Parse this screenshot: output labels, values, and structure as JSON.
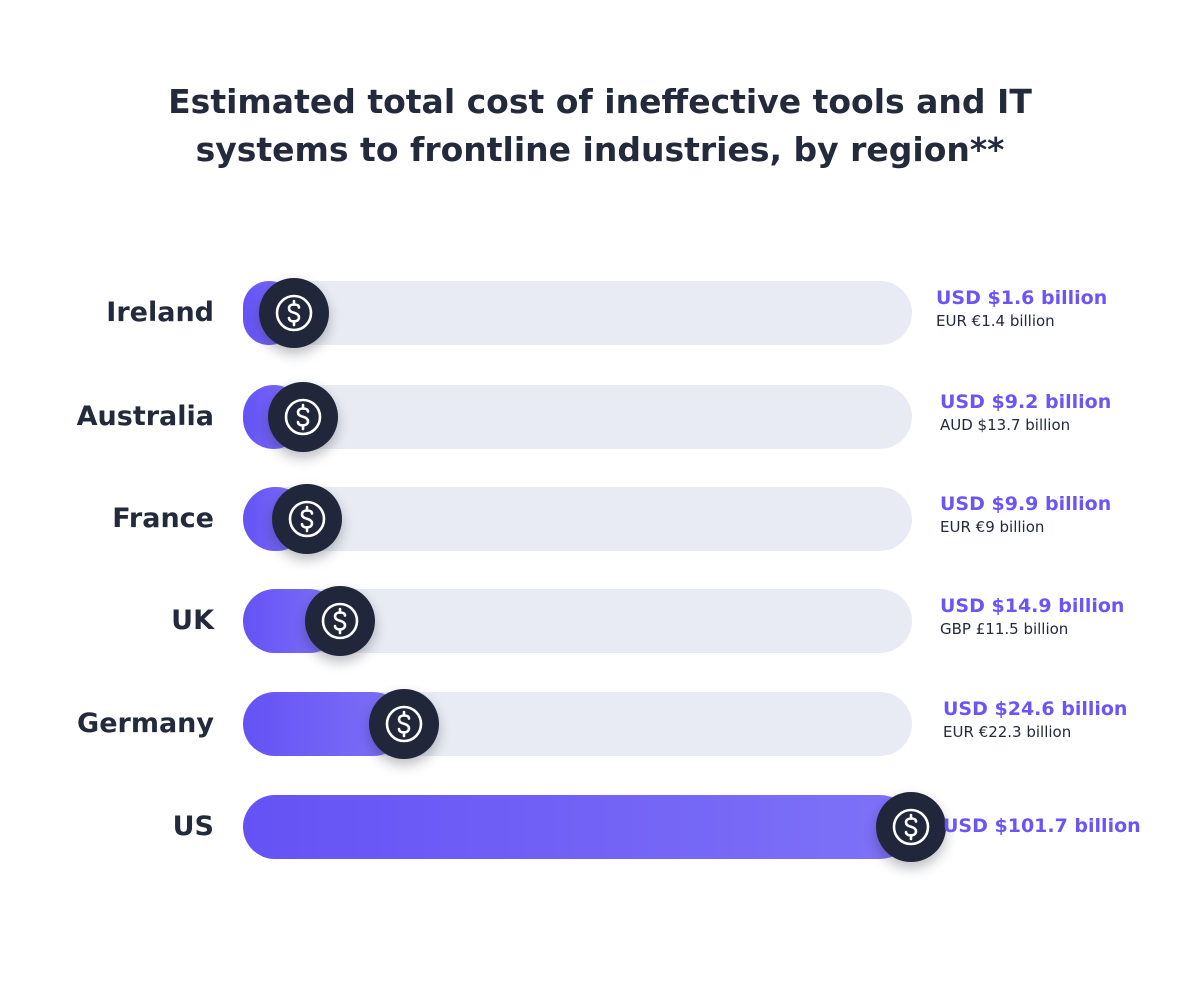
{
  "title": {
    "line1": "Estimated total cost of ineffective tools and IT",
    "line2": "systems to frontline industries, by region**"
  },
  "colors": {
    "accent": "#6a55f6",
    "bar_start": "#6552f5",
    "bar_end": "#7e72f7",
    "track": "#e8ebf3",
    "coin": "#20273a",
    "text": "#222a3b"
  },
  "icon": "dollar-coin-icon",
  "chart_data": {
    "type": "bar",
    "orientation": "horizontal",
    "title": "Estimated total cost of ineffective tools and IT systems to frontline industries, by region**",
    "unit": "USD billion",
    "xlim": [
      0,
      101.7
    ],
    "categories": [
      "Ireland",
      "Australia",
      "France",
      "UK",
      "Germany",
      "US"
    ],
    "values": [
      1.6,
      9.2,
      9.9,
      14.9,
      24.6,
      101.7
    ],
    "data_labels": [
      {
        "usd": "USD $1.6 billion",
        "local": "EUR €1.4 billion"
      },
      {
        "usd": "USD $9.2 billion",
        "local": "AUD $13.7 billion"
      },
      {
        "usd": "USD $9.9 billion",
        "local": "EUR €9 billion"
      },
      {
        "usd": "USD $14.9 billion",
        "local": "GBP £11.5 billion"
      },
      {
        "usd": "USD $24.6 billion",
        "local": "EUR €22.3 billion"
      },
      {
        "usd": "USD $101.7 billion",
        "local": ""
      }
    ]
  }
}
